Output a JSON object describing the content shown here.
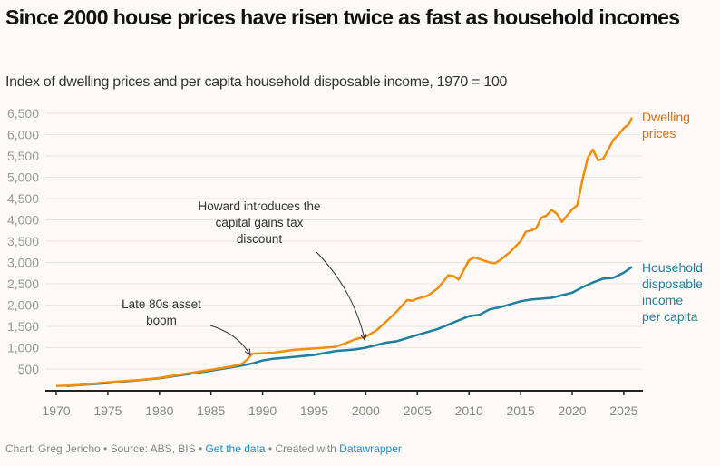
{
  "title": "Since 2000 house prices have risen twice as fast as household incomes",
  "subtitle": "Index of dwelling prices and per capita household disposable income, 1970 = 100",
  "footer": {
    "chart_by": "Chart: Greg Jericho",
    "sep1": " • ",
    "source": "Source: ABS, BIS",
    "sep2": " • ",
    "get_data": "Get the data",
    "sep3": " • Created with ",
    "datawrapper": "Datawrapper"
  },
  "chart_data": {
    "type": "line",
    "title": "Since 2000 house prices have risen twice as fast as household incomes",
    "subtitle": "Index of dwelling prices and per capita household disposable income, 1970 = 100",
    "xlim": [
      1970,
      2026
    ],
    "ylim": [
      0,
      6500
    ],
    "x_ticks": [
      1970,
      1975,
      1980,
      1985,
      1990,
      1995,
      2000,
      2005,
      2010,
      2015,
      2020,
      2025
    ],
    "y_ticks": [
      500,
      1000,
      1500,
      2000,
      2500,
      3000,
      3500,
      4000,
      4500,
      5000,
      5500,
      6000,
      6500
    ],
    "y_tick_labels": [
      "500",
      "1,000",
      "1,500",
      "2,000",
      "2,500",
      "3,000",
      "3,500",
      "4,000",
      "4,500",
      "5,000",
      "5,500",
      "6,000",
      "6,500"
    ],
    "grid": "horizontal",
    "series": [
      {
        "name": "Dwelling prices",
        "color": "#f28e0c",
        "label_color": "#d46f0f",
        "label_lines": [
          "Dwelling",
          "prices"
        ],
        "x": [
          1970,
          1972,
          1975,
          1978,
          1980,
          1982,
          1985,
          1987,
          1988,
          1988.5,
          1989,
          1990,
          1991,
          1993,
          1995,
          1997,
          1998,
          1999,
          2000,
          2001,
          2002,
          2003,
          2004,
          2004.5,
          2005,
          2006,
          2007,
          2008,
          2008.5,
          2009,
          2010,
          2010.5,
          2011,
          2012,
          2012.5,
          2013,
          2014,
          2015,
          2015.5,
          2016,
          2016.5,
          2017,
          2017.5,
          2018,
          2018.5,
          2019,
          2019.5,
          2020,
          2020.5,
          2021,
          2021.5,
          2022,
          2022.5,
          2023,
          2023.5,
          2024,
          2024.5,
          2025,
          2025.5,
          2025.8
        ],
        "y": [
          100,
          120,
          190,
          240,
          290,
          370,
          480,
          560,
          620,
          720,
          860,
          870,
          880,
          950,
          980,
          1020,
          1100,
          1200,
          1260,
          1400,
          1620,
          1850,
          2120,
          2100,
          2150,
          2220,
          2400,
          2700,
          2680,
          2600,
          3050,
          3120,
          3080,
          3000,
          2980,
          3050,
          3250,
          3500,
          3720,
          3750,
          3800,
          4050,
          4100,
          4230,
          4150,
          3950,
          4100,
          4250,
          4350,
          4950,
          5450,
          5650,
          5400,
          5430,
          5650,
          5880,
          6000,
          6150,
          6250,
          6400
        ]
      },
      {
        "name": "Household disposable income per capita",
        "color": "#1d7fa0",
        "label_color": "#1d7fa0",
        "label_lines": [
          "Household",
          "disposable",
          "income",
          "per capita"
        ],
        "x": [
          1971,
          1975,
          1980,
          1985,
          1988,
          1989,
          1990,
          1991,
          1993,
          1995,
          1997,
          1999,
          2000,
          2002,
          2003,
          2005,
          2007,
          2009,
          2010,
          2011,
          2012,
          2013,
          2015,
          2016,
          2018,
          2020,
          2021,
          2022,
          2023,
          2024,
          2025,
          2025.8
        ],
        "y": [
          100,
          170,
          280,
          460,
          580,
          630,
          700,
          740,
          780,
          830,
          920,
          960,
          1000,
          1120,
          1150,
          1300,
          1440,
          1640,
          1740,
          1770,
          1900,
          1950,
          2090,
          2130,
          2170,
          2290,
          2420,
          2530,
          2620,
          2640,
          2760,
          2900
        ]
      }
    ],
    "annotations": [
      {
        "lines": [
          "Late 80s asset",
          "boom"
        ],
        "target_x": 1988.8,
        "target_y": 830
      },
      {
        "lines": [
          "Howard introduces the",
          "capital gains tax",
          "discount"
        ],
        "target_x": 1999.9,
        "target_y": 1180
      }
    ]
  }
}
